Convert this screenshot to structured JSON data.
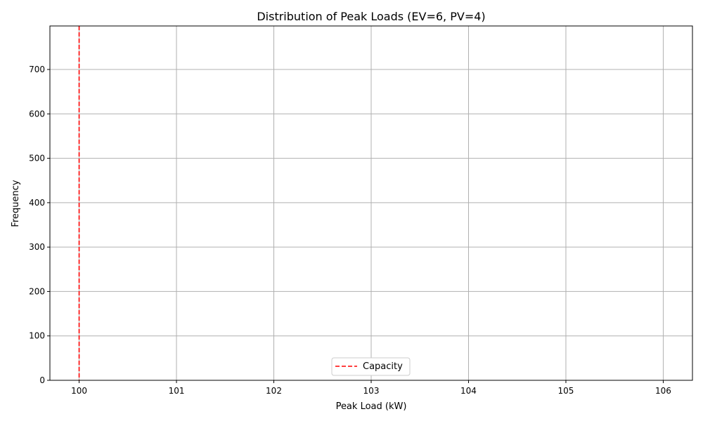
{
  "chart_data": {
    "type": "histogram",
    "title": "Distribution of Peak Loads (EV=6, PV=4)",
    "xlabel": "Peak Load (kW)",
    "ylabel": "Frequency",
    "xlim": [
      99.7,
      106.3
    ],
    "ylim": [
      0,
      798
    ],
    "x_ticks": [
      100,
      101,
      102,
      103,
      104,
      105,
      106
    ],
    "y_ticks": [
      0,
      100,
      200,
      300,
      400,
      500,
      600,
      700
    ],
    "grid": true,
    "bars": [],
    "reference_lines": [
      {
        "name": "Capacity",
        "x": 100,
        "color": "#ff0000",
        "style": "dashed"
      }
    ],
    "legend": {
      "position": "bottom-center",
      "entries": [
        "Capacity"
      ]
    }
  }
}
